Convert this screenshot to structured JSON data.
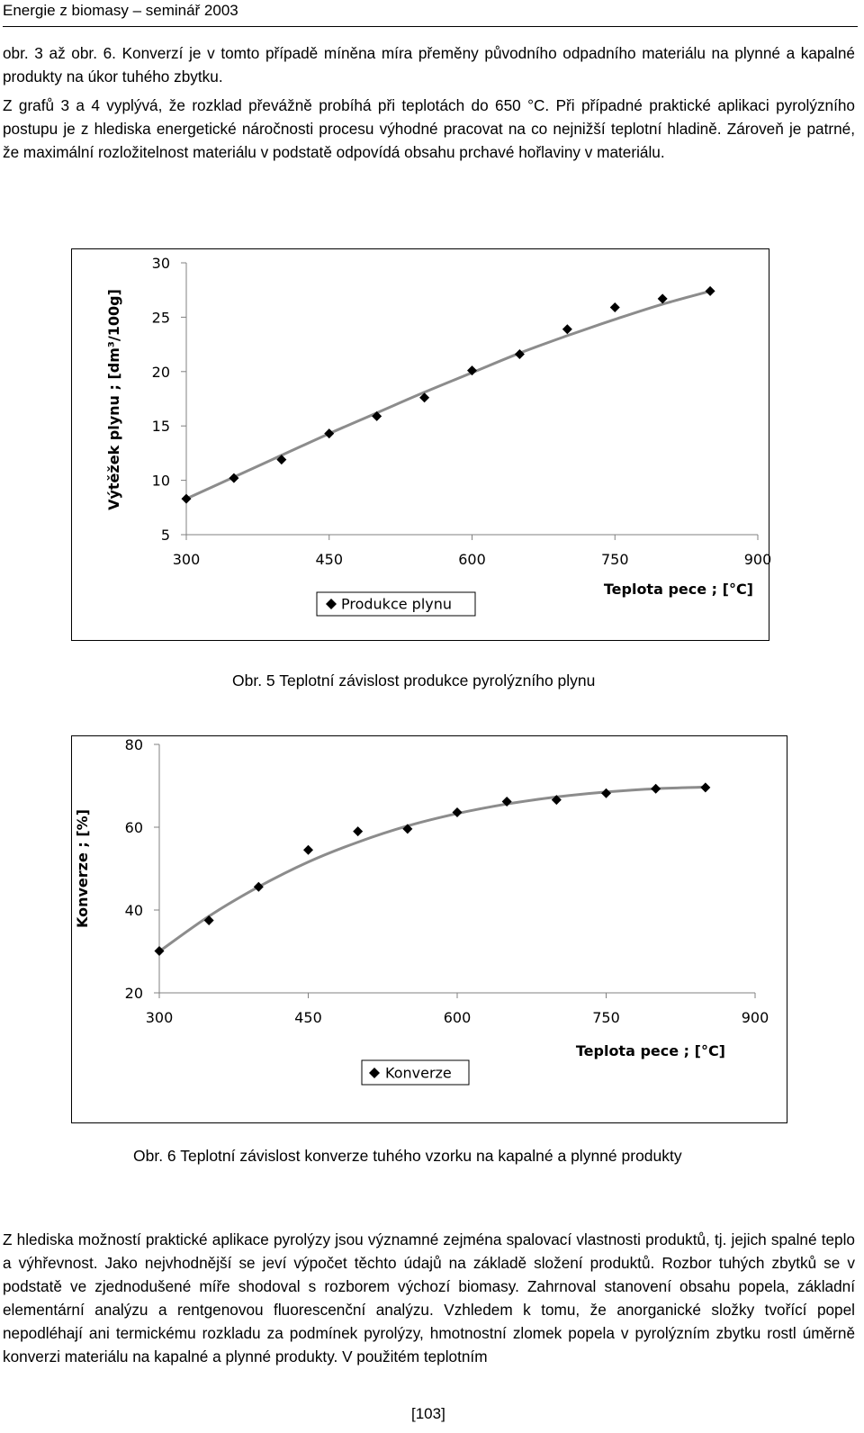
{
  "header": {
    "title": "Energie z biomasy – seminář 2003"
  },
  "paragraphs": {
    "intro": "obr. 3 až obr. 6. Konverzí je v tomto případě míněna míra přeměny původního odpadního materiálu na plynné a kapalné produkty na úkor tuhého zbytku.",
    "body": "Z grafů 3 a 4 vyplývá, že rozklad převážně probíhá při teplotách do 650 °C. Při případné praktické aplikaci pyrolýzního postupu je z hlediska energetické náročnosti procesu výhodné pracovat na co nejnižší teplotní hladině. Zároveň je patrné, že maximální rozložitelnost materiálu v podstatě odpovídá obsahu prchavé hořlaviny v materiálu.",
    "bottom": "Z hlediska možností praktické aplikace pyrolýzy jsou významné zejména spalovací vlastnosti produktů, tj. jejich spalné teplo a výhřevnost. Jako nejvhodnější se jeví výpočet těchto údajů na základě složení produktů. Rozbor tuhých zbytků se v podstatě ve zjednodušené míře shodoval s rozborem výchozí biomasy. Zahrnoval stanovení obsahu popela, základní elementární analýzu a rentgenovou fluorescenční analýzu. Vzhledem k tomu, že anorganické složky tvořící popel nepodléhají ani termickému rozkladu za podmínek pyrolýzy, hmotnostní zlomek popela v pyrolýzním zbytku rostl úměrně konverzi materiálu na kapalné a plynné produkty. V použitém teplotním"
  },
  "captions": {
    "fig5": "Obr. 5 Teplotní závislost produkce pyrolýzního plynu",
    "fig6": "Obr. 6 Teplotní závislost konverze tuhého vzorku na kapalné a plynné produkty"
  },
  "page_number": "[103]",
  "chart_data": [
    {
      "type": "scatter",
      "xlabel": "Teplota pece ; [°C]",
      "ylabel": "Výtěžek plynu ; [dm³/100g]",
      "xlim": [
        300,
        900
      ],
      "ylim": [
        5,
        30
      ],
      "xticks": [
        "300",
        "450",
        "600",
        "750",
        "900"
      ],
      "yticks": [
        "30",
        "25",
        "20",
        "15",
        "10",
        "5"
      ],
      "legend": "bottom",
      "series": [
        {
          "name": "Produkce plynu",
          "x": [
            300,
            350,
            400,
            450,
            500,
            550,
            600,
            650,
            700,
            750,
            800,
            850
          ],
          "y": [
            8.3,
            10.2,
            11.9,
            14.3,
            15.9,
            17.6,
            20.1,
            21.6,
            23.9,
            25.9,
            26.7,
            27.4
          ],
          "trend": [
            8.3,
            10.3,
            12.3,
            14.3,
            16.2,
            18.1,
            19.9,
            21.7,
            23.3,
            24.8,
            26.2,
            27.4
          ]
        }
      ]
    },
    {
      "type": "scatter",
      "xlabel": "Teplota pece ; [°C]",
      "ylabel": "Konverze ; [%]",
      "xlim": [
        300,
        900
      ],
      "ylim": [
        20,
        80
      ],
      "xticks": [
        "300",
        "450",
        "600",
        "750",
        "900"
      ],
      "yticks": [
        "80",
        "60",
        "40",
        "20"
      ],
      "legend": "bottom",
      "series": [
        {
          "name": "Konverze",
          "x": [
            300,
            350,
            400,
            450,
            500,
            550,
            600,
            650,
            700,
            750,
            800,
            850
          ],
          "y": [
            30.1,
            37.5,
            45.6,
            54.5,
            59.0,
            59.6,
            63.6,
            66.2,
            66.6,
            68.2,
            69.3,
            69.6
          ],
          "trend": [
            30.0,
            38.5,
            45.6,
            51.6,
            56.4,
            60.3,
            63.3,
            65.6,
            67.3,
            68.5,
            69.3,
            69.7
          ]
        }
      ]
    }
  ]
}
